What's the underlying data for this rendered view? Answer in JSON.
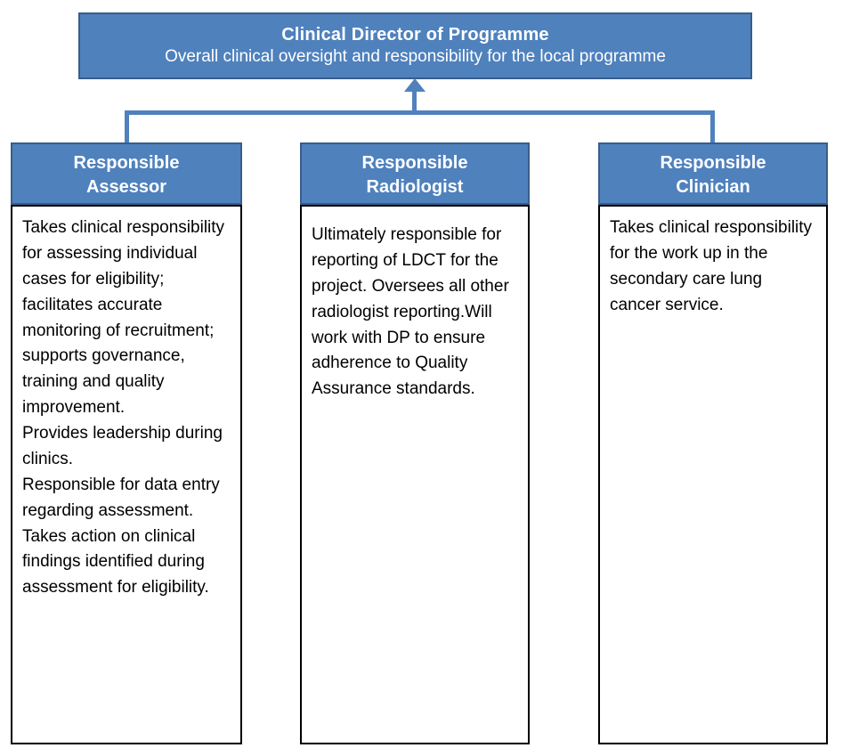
{
  "root": {
    "title": "Clinical Director of Programme",
    "subtitle": "Overall clinical oversight and responsibility for the local programme"
  },
  "columns": [
    {
      "title": "Responsible\nAssessor",
      "body": "Takes clinical responsibility for assessing individual cases for eligibility; facilitates accurate monitoring of recruitment; supports governance, training and quality improvement.\nProvides leadership during clinics.\nResponsible for data entry regarding assessment.\nTakes action on clinical findings identified during assessment for eligibility."
    },
    {
      "title": "Responsible\nRadiologist",
      "body": "Ultimately responsible for reporting of LDCT for the project. Oversees all other radiologist reporting.Will work with DP to ensure adherence to Quality Assurance standards."
    },
    {
      "title": "Responsible\nClinician",
      "body": "Takes clinical responsibility for the work up in the secondary care lung cancer service."
    }
  ],
  "colors": {
    "header_fill": "#4f81bd",
    "header_border": "#385d8a",
    "body_border": "#000000",
    "connector": "#4f81bd",
    "text_on_blue": "#ffffff",
    "body_text": "#000000"
  }
}
